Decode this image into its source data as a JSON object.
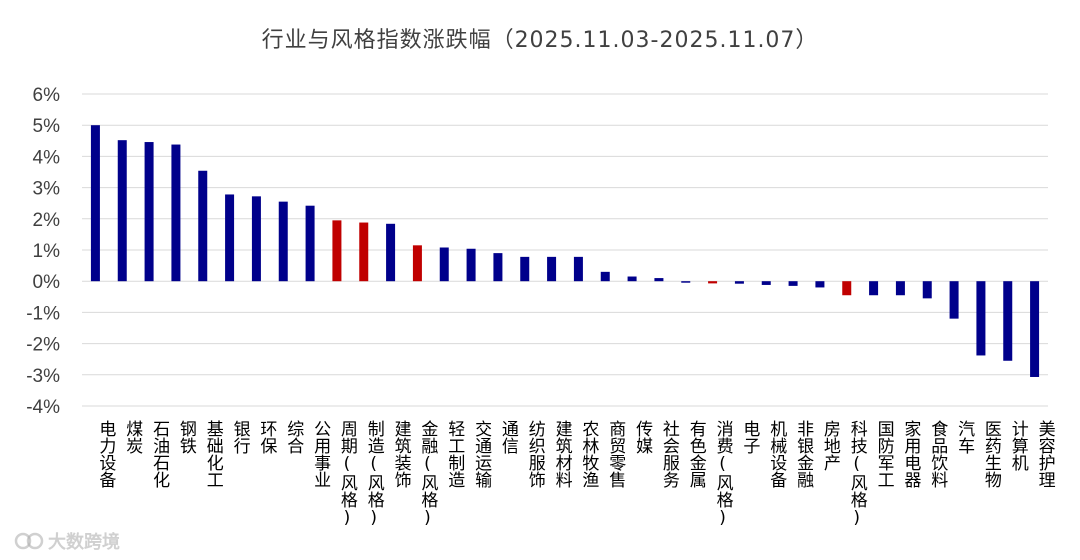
{
  "title": "行业与风格指数涨跌幅（2025.11.03-2025.11.07）",
  "watermark": "大数跨境",
  "colors": {
    "industry": "#00008B",
    "style": "#C00000",
    "grid": "#D9D9D9",
    "text": "#404040"
  },
  "chart_data": {
    "type": "bar",
    "title": "行业与风格指数涨跌幅（2025.11.03-2025.11.07）",
    "xlabel": "",
    "ylabel": "",
    "ylim": [
      -4,
      6
    ],
    "yticks": [
      "6%",
      "5%",
      "4%",
      "3%",
      "2%",
      "1%",
      "0%",
      "-1%",
      "-2%",
      "-3%",
      "-4%"
    ],
    "grid": true,
    "legend": "none",
    "categories": [
      "电力设备",
      "煤炭",
      "石油石化",
      "钢铁",
      "基础化工",
      "银行",
      "环保",
      "综合",
      "公用事业",
      "周期(风格)",
      "制造(风格)",
      "建筑装饰",
      "金融(风格)",
      "轻工制造",
      "交通运输",
      "通信",
      "纺织服饰",
      "建筑材料",
      "农林牧渔",
      "商贸零售",
      "传媒",
      "社会服务",
      "有色金属",
      "消费(风格)",
      "电子",
      "机械设备",
      "非银金融",
      "房地产",
      "科技(风格)",
      "国防军工",
      "家用电器",
      "食品饮料",
      "汽车",
      "医药生物",
      "计算机",
      "美容护理"
    ],
    "values": [
      5.0,
      4.52,
      4.46,
      4.38,
      3.54,
      2.78,
      2.72,
      2.55,
      2.42,
      1.95,
      1.88,
      1.84,
      1.15,
      1.08,
      1.04,
      0.9,
      0.78,
      0.78,
      0.78,
      0.3,
      0.15,
      0.1,
      -0.03,
      -0.07,
      -0.08,
      -0.12,
      -0.15,
      -0.2,
      -0.45,
      -0.45,
      -0.45,
      -0.55,
      -1.2,
      -2.38,
      -2.55,
      -3.07
    ],
    "is_style": [
      false,
      false,
      false,
      false,
      false,
      false,
      false,
      false,
      false,
      true,
      true,
      false,
      true,
      false,
      false,
      false,
      false,
      false,
      false,
      false,
      false,
      false,
      false,
      true,
      false,
      false,
      false,
      false,
      true,
      false,
      false,
      false,
      false,
      false,
      false,
      false
    ]
  }
}
